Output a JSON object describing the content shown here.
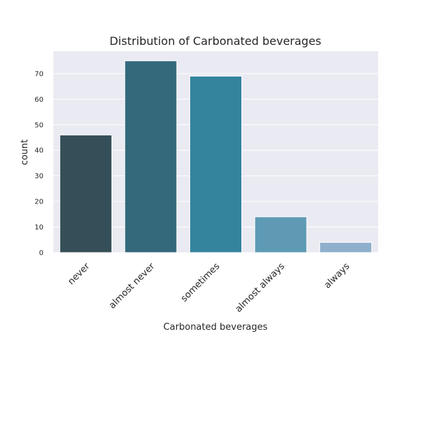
{
  "chart_data": {
    "type": "bar",
    "title": "Distribution of Carbonated beverages",
    "xlabel": "Carbonated beverages",
    "ylabel": "count",
    "categories": [
      "never",
      "almost never",
      "sometimes",
      "almost always",
      "always"
    ],
    "values": [
      46,
      75,
      69,
      14,
      4
    ],
    "yticks": [
      0,
      10,
      20,
      30,
      40,
      50,
      60,
      70
    ],
    "ylim": [
      0,
      78.75
    ],
    "grid": true,
    "colors": [
      "#354f59",
      "#33697b",
      "#35849e",
      "#5e9ab4",
      "#8fb0cc"
    ],
    "background": "#eaeaf2"
  }
}
